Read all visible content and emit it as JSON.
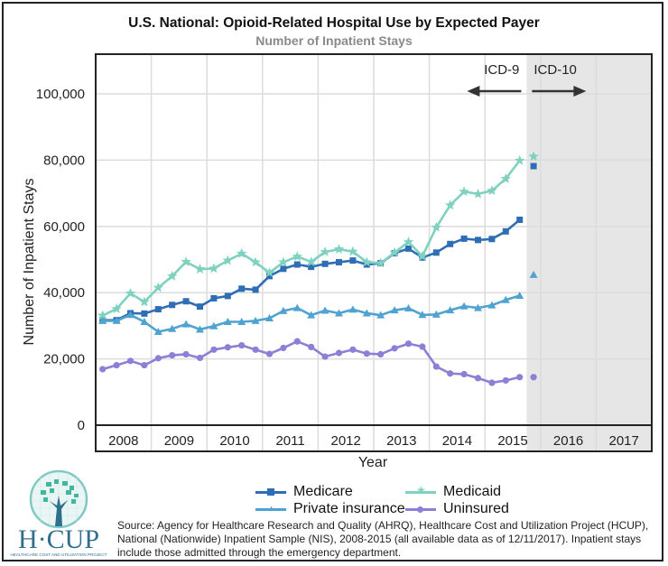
{
  "header": {
    "title": "U.S. National: Opioid-Related Hospital Use by Expected Payer",
    "subtitle": "Number of Inpatient Stays"
  },
  "chart_data": {
    "type": "line",
    "title": "U.S. National: Opioid-Related Hospital Use by Expected Payer",
    "subtitle": "Number of Inpatient Stays",
    "xlabel": "Year",
    "ylabel": "Number of Inpatient Stays",
    "ylim": [
      0,
      112000
    ],
    "yticks": [
      0,
      20000,
      40000,
      60000,
      80000,
      100000
    ],
    "ytick_labels": [
      "0",
      "20,000",
      "40,000",
      "60,000",
      "80,000",
      "100,000"
    ],
    "x_range_years": [
      2008,
      2018
    ],
    "xtick_labels": [
      "2008",
      "2009",
      "2010",
      "2011",
      "2012",
      "2013",
      "2014",
      "2015",
      "2016",
      "2017"
    ],
    "x_granularity": "quarterly",
    "x": [
      "2008Q1",
      "2008Q2",
      "2008Q3",
      "2008Q4",
      "2009Q1",
      "2009Q2",
      "2009Q3",
      "2009Q4",
      "2010Q1",
      "2010Q2",
      "2010Q3",
      "2010Q4",
      "2011Q1",
      "2011Q2",
      "2011Q3",
      "2011Q4",
      "2012Q1",
      "2012Q2",
      "2012Q3",
      "2012Q4",
      "2013Q1",
      "2013Q2",
      "2013Q3",
      "2013Q4",
      "2014Q1",
      "2014Q2",
      "2014Q3",
      "2014Q4",
      "2015Q1",
      "2015Q2",
      "2015Q3"
    ],
    "grid": true,
    "legend_position": "bottom",
    "series": [
      {
        "name": "Medicare",
        "color": "#2f6db5",
        "marker": "square",
        "values": [
          31700,
          31700,
          33800,
          33700,
          35000,
          36300,
          37400,
          35800,
          38300,
          39000,
          41200,
          40900,
          45000,
          47200,
          48500,
          47800,
          48700,
          49200,
          49700,
          48500,
          48900,
          51900,
          53300,
          50600,
          52100,
          54700,
          56300,
          55900,
          56200,
          58500,
          62000
        ],
        "icd10_point": {
          "x": "2015Q4",
          "value": 78200
        }
      },
      {
        "name": "Medicaid",
        "color": "#7fd1c0",
        "marker": "star",
        "values": [
          33100,
          35100,
          39800,
          37200,
          41500,
          45000,
          49300,
          47100,
          47300,
          49700,
          51800,
          49200,
          46000,
          49200,
          50900,
          49300,
          52300,
          53100,
          52400,
          49200,
          48900,
          52100,
          55300,
          51000,
          59700,
          66400,
          70500,
          69800,
          70800,
          74400,
          79900
        ],
        "icd10_point": {
          "x": "2015Q4",
          "value": 81100
        }
      },
      {
        "name": "Private insurance",
        "color": "#4fa3d1",
        "marker": "triangle",
        "values": [
          31500,
          31500,
          33300,
          31200,
          28200,
          29100,
          30500,
          28900,
          29900,
          31200,
          31200,
          31500,
          32300,
          34500,
          35400,
          33200,
          34600,
          33800,
          34900,
          33800,
          33200,
          34700,
          35300,
          33300,
          33400,
          34700,
          35900,
          35400,
          36200,
          37800,
          39100
        ],
        "icd10_point": {
          "x": "2015Q4",
          "value": 45400
        }
      },
      {
        "name": "Uninsured",
        "color": "#8b7fd6",
        "marker": "circle",
        "values": [
          16900,
          18100,
          19400,
          18100,
          20200,
          21100,
          21400,
          20300,
          22800,
          23500,
          24100,
          22800,
          21500,
          23300,
          25300,
          23600,
          20700,
          21800,
          22800,
          21600,
          21400,
          23200,
          24600,
          23700,
          17700,
          15600,
          15400,
          14200,
          12800,
          13500,
          14500
        ],
        "icd10_point": {
          "x": "2015Q4",
          "value": 14500
        }
      }
    ],
    "annotations": [
      {
        "text": "ICD-9",
        "arrow": "left"
      },
      {
        "text": "ICD-10",
        "arrow": "right"
      }
    ],
    "shaded_region": {
      "from": "2015Q4",
      "to": "2017Q4",
      "color": "#e6e6e6",
      "meaning": "ICD-10 period"
    }
  },
  "legend": {
    "items": [
      {
        "label": "Medicare",
        "color": "#2f6db5",
        "marker": "■"
      },
      {
        "label": "Medicaid",
        "color": "#7fd1c0",
        "marker": "★"
      },
      {
        "label": "Private insurance",
        "color": "#4fa3d1",
        "marker": "▲"
      },
      {
        "label": "Uninsured",
        "color": "#8b7fd6",
        "marker": "●"
      }
    ]
  },
  "logo": {
    "name": "H·CUP",
    "tagline": "HEALTHCARE COST AND UTILIZATION PROJECT"
  },
  "source": {
    "text": "Source: Agency for Healthcare Research and Quality (AHRQ), Healthcare Cost and Utilization Project (HCUP), National (Nationwide) Inpatient Sample (NIS), 2008-2015 (all available data as of 12/11/2017). Inpatient stays include those admitted through the emergency department."
  }
}
